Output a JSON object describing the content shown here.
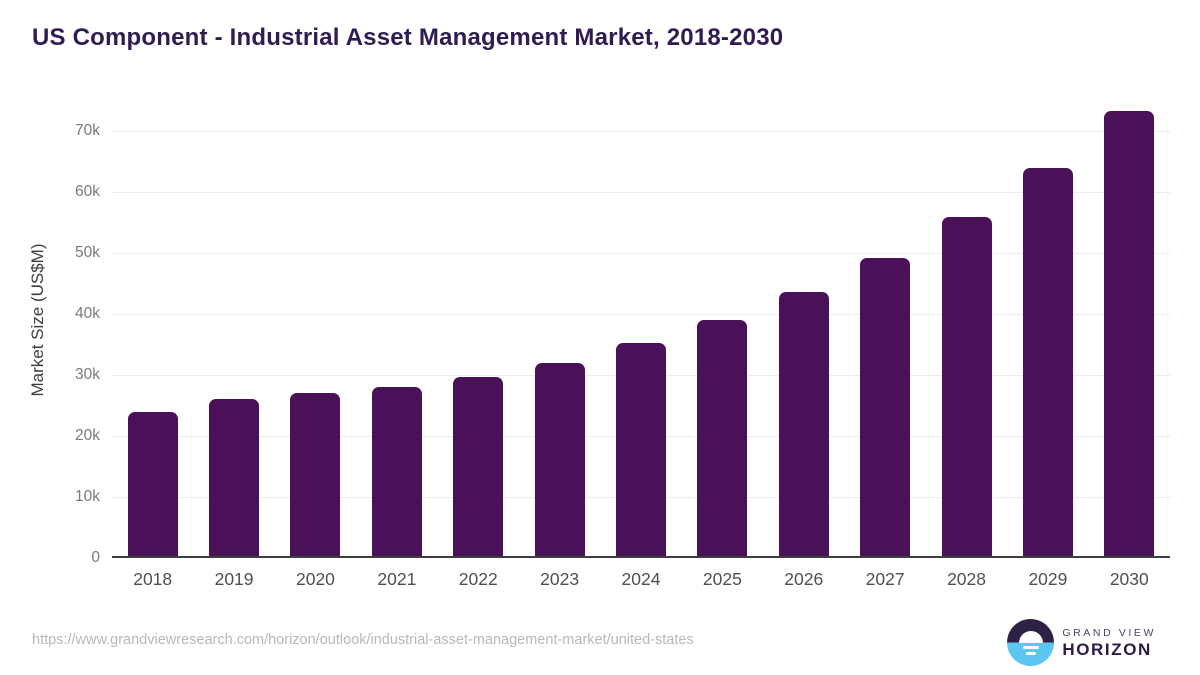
{
  "title": "US Component - Industrial Asset Management Market, 2018-2030",
  "chart_data": {
    "type": "bar",
    "title": "US Component - Industrial Asset Management Market, 2018-2030",
    "categories": [
      "2018",
      "2019",
      "2020",
      "2021",
      "2022",
      "2023",
      "2024",
      "2025",
      "2026",
      "2027",
      "2028",
      "2029",
      "2030"
    ],
    "values": [
      23900,
      26000,
      27100,
      28000,
      29600,
      31900,
      35300,
      39000,
      43600,
      49100,
      55900,
      64000,
      73300
    ],
    "xlabel": "",
    "ylabel": "Market Size (US$M)",
    "ylim": [
      0,
      75000
    ],
    "yticks": [
      0,
      10000,
      20000,
      30000,
      40000,
      50000,
      60000,
      70000
    ],
    "ytick_labels": [
      "0",
      "10k",
      "20k",
      "30k",
      "40k",
      "50k",
      "60k",
      "70k"
    ],
    "grid": "horizontal",
    "legend": "none",
    "bar_color": "#4a1158"
  },
  "colors": {
    "title": "#301c53",
    "bar": "#4a1158",
    "gridline": "#ececec",
    "axis_line": "#3f3f3f",
    "ytick_label": "#7a7a7a",
    "xtick_label": "#4f4f4f",
    "url_text": "#b8b8b8",
    "logo_dark": "#2d2245",
    "logo_blue": "#5bc6f2"
  },
  "footer": {
    "source_url": "https://www.grandviewresearch.com/horizon/outlook/industrial-asset-management-market/united-states",
    "brand_top": "GRAND VIEW",
    "brand_bottom": "HORIZON"
  }
}
